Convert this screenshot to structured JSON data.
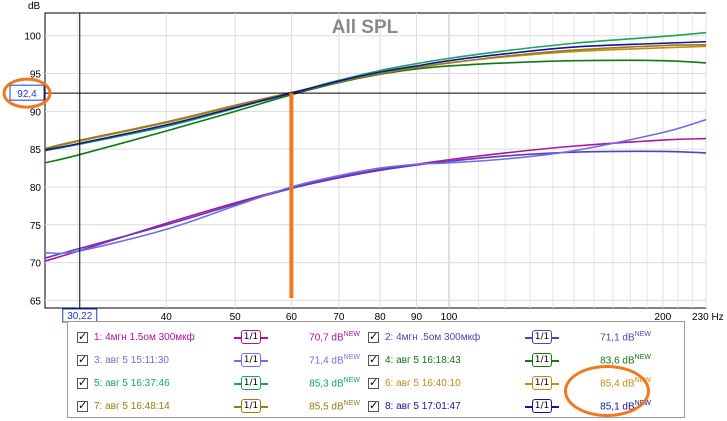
{
  "chart_data": {
    "type": "line",
    "title": "All SPL",
    "ylabel": "dB",
    "xlabel": "Hz",
    "xscale": "log",
    "xlim": [
      27,
      230
    ],
    "ylim": [
      64,
      103
    ],
    "grid": true,
    "x_ticks": [
      40,
      50,
      60,
      70,
      80,
      90,
      100,
      200,
      230
    ],
    "y_ticks": [
      65,
      70,
      75,
      80,
      85,
      90,
      95,
      100
    ],
    "x_tick_labels": [
      "40",
      "50",
      "60",
      "70",
      "80",
      "90",
      "100",
      "200",
      "230 Hz"
    ],
    "cursor": {
      "x_readout": "30,22",
      "y_readout": "92,4",
      "x": 30.22,
      "y": 92.4
    },
    "x": [
      27,
      30,
      40,
      50,
      60,
      70,
      80,
      90,
      100,
      120,
      150,
      200,
      230
    ],
    "series": [
      {
        "name": "1: 4мгн 1.5ом 300мкф",
        "color": "#b0149e",
        "level": "70,7 dB",
        "values": [
          70.2,
          71.5,
          75.2,
          77.9,
          79.9,
          81.3,
          82.3,
          83.0,
          83.6,
          84.5,
          85.4,
          86.2,
          86.4
        ]
      },
      {
        "name": "2: 4мгн .5ом 300мкф",
        "color": "#5c3cb8",
        "level": "71,1 dB",
        "values": [
          70.6,
          71.8,
          75.0,
          77.7,
          79.8,
          81.2,
          82.2,
          82.9,
          83.4,
          84.1,
          84.6,
          84.7,
          84.5
        ]
      },
      {
        "name": "3: авг 5 15:11:30",
        "color": "#6e6ee8",
        "level": "71,4 dB",
        "values": [
          71.3,
          71.5,
          74.4,
          77.5,
          80.0,
          81.5,
          82.5,
          83.0,
          83.2,
          83.7,
          84.8,
          87.2,
          88.9
        ]
      },
      {
        "name": "4: авг 5 16:18:43",
        "color": "#127812",
        "level": "83,6 dB",
        "values": [
          83.2,
          84.2,
          87.4,
          90.0,
          92.2,
          93.8,
          94.9,
          95.6,
          96.0,
          96.4,
          96.7,
          96.7,
          96.4
        ]
      },
      {
        "name": "5: авг 5 16:37:46",
        "color": "#1aa55a",
        "level": "85,3 dB",
        "values": [
          84.8,
          85.6,
          88.0,
          90.4,
          92.4,
          94.1,
          95.4,
          96.3,
          97.0,
          98.0,
          99.0,
          99.9,
          100.4
        ]
      },
      {
        "name": "6: авг 5 16:40:10",
        "color": "#c48a18",
        "level": "85,4 dB",
        "values": [
          85.0,
          86.0,
          88.5,
          90.7,
          92.4,
          93.9,
          95.0,
          95.8,
          96.4,
          97.2,
          97.9,
          98.4,
          98.6
        ]
      },
      {
        "name": "7: авг 5 16:48:14",
        "color": "#9a7c10",
        "level": "85,5 dB",
        "values": [
          85.1,
          86.1,
          88.6,
          90.8,
          92.5,
          93.9,
          95.0,
          95.8,
          96.4,
          97.3,
          98.1,
          98.7,
          98.8
        ]
      },
      {
        "name": "8: авг 5 17:01:47",
        "color": "#1212a8",
        "level": "85,1 dB",
        "values": [
          84.9,
          85.7,
          88.2,
          90.5,
          92.4,
          94.0,
          95.2,
          96.0,
          96.7,
          97.6,
          98.5,
          99.0,
          99.2
        ]
      }
    ],
    "new_badge": "NEW",
    "symbol_text": "1/1"
  },
  "annotations": {
    "vline_x": 60,
    "vline_color": "#f07820",
    "circle_color": "#f07820"
  }
}
